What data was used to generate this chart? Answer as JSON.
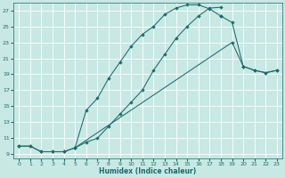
{
  "xlabel": "Humidex (Indice chaleur)",
  "bg_color": "#c8e8e4",
  "line_color": "#1a6b6b",
  "grid_color": "#ffffff",
  "xlim": [
    -0.5,
    23.5
  ],
  "ylim": [
    8.5,
    28
  ],
  "xticks": [
    0,
    1,
    2,
    3,
    4,
    5,
    6,
    7,
    8,
    9,
    10,
    11,
    12,
    13,
    14,
    15,
    16,
    17,
    18,
    19,
    20,
    21,
    22,
    23
  ],
  "yticks": [
    9,
    11,
    13,
    15,
    17,
    19,
    21,
    23,
    25,
    27
  ],
  "curve1_x": [
    0,
    1,
    2,
    3,
    4,
    5,
    6,
    7,
    8,
    9,
    10,
    11,
    12,
    13,
    14,
    15,
    16,
    17,
    18
  ],
  "curve1_y": [
    10.0,
    10.0,
    9.3,
    9.3,
    9.3,
    9.8,
    10.5,
    11.0,
    12.5,
    14.0,
    15.5,
    17.0,
    19.5,
    21.5,
    23.5,
    25.0,
    26.3,
    27.3,
    27.4
  ],
  "curve2_x": [
    0,
    1,
    2,
    3,
    4,
    5,
    6,
    7,
    8,
    9,
    10,
    11,
    12,
    13,
    14,
    15,
    16,
    17,
    18
  ],
  "curve2_y": [
    10.0,
    10.0,
    9.3,
    9.3,
    9.3,
    9.8,
    14.5,
    16.0,
    18.5,
    20.5,
    22.5,
    24.0,
    25.0,
    26.5,
    27.3,
    27.7,
    27.7,
    27.2,
    26.3
  ],
  "curve3_x": [
    5,
    19,
    20,
    21,
    22,
    23
  ],
  "curve3_y": [
    9.8,
    23.0,
    20.0,
    19.5,
    19.2,
    19.5
  ],
  "curve4_x": [
    18,
    19,
    20,
    21,
    22,
    23
  ],
  "curve4_y": [
    26.3,
    25.5,
    20.0,
    19.5,
    19.2,
    19.5
  ]
}
